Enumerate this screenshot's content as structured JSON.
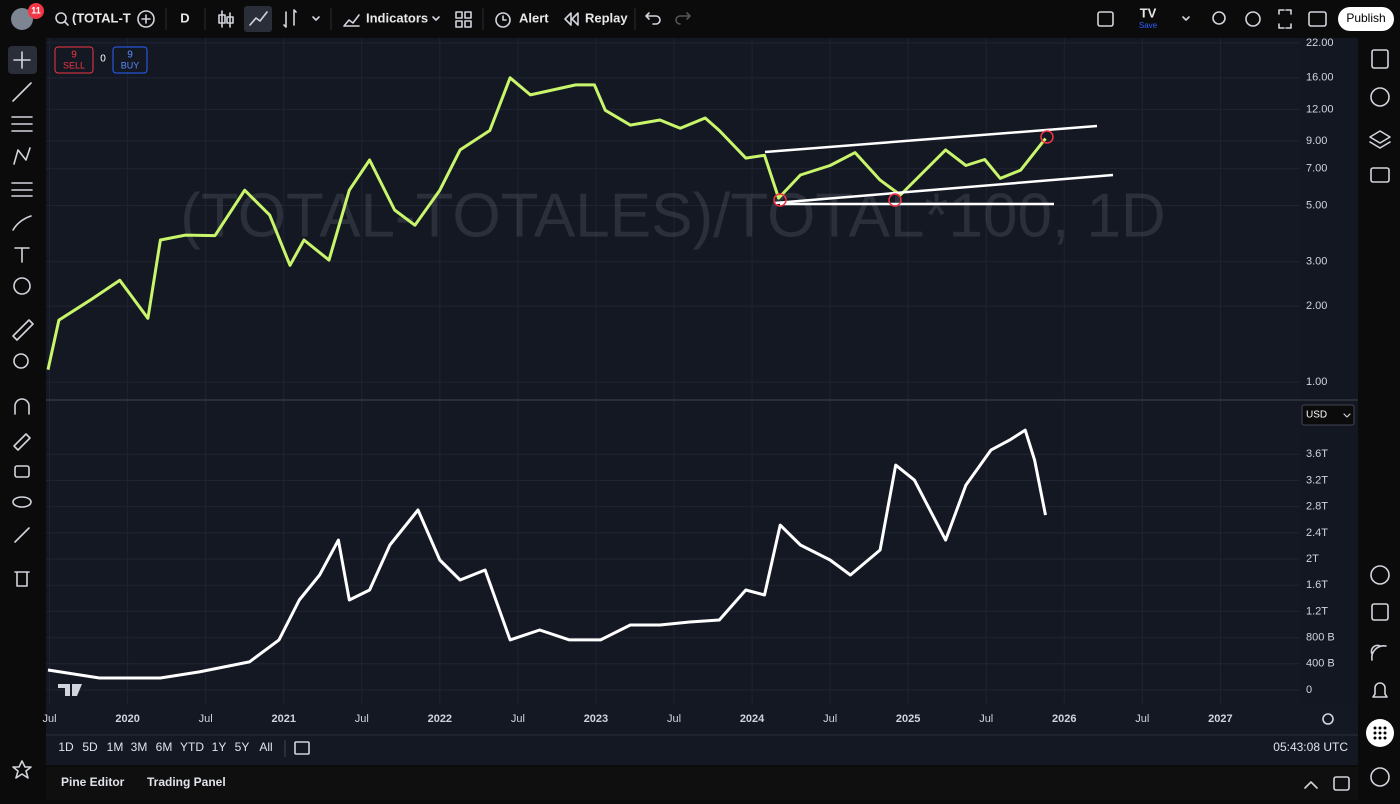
{
  "toolbar": {
    "notification_count": 11,
    "symbol": "(TOTAL-T",
    "interval": "D",
    "indicators": "Indicators",
    "alert": "Alert",
    "replay": "Replay",
    "layout_name": "TV",
    "save": "Save",
    "publish": "Publish"
  },
  "trade_widget": {
    "sell_price": 9,
    "sell": "SELL",
    "spread": 0,
    "buy_price": 9,
    "buy": "BUY"
  },
  "currency": "USD",
  "chart_data": [
    {
      "type": "line",
      "watermark": "(TOTAL-TOTALES)/TOTAL*100, 1D",
      "log_scale": true,
      "grid": true,
      "x": [
        2019.49,
        2019.56,
        2019.76,
        2019.95,
        2020.13,
        2020.21,
        2020.37,
        2020.56,
        2020.75,
        2020.91,
        2021.04,
        2021.13,
        2021.29,
        2021.42,
        2021.55,
        2021.71,
        2021.84,
        2022.0,
        2022.13,
        2022.32,
        2022.45,
        2022.58,
        2022.87,
        2022.99,
        2023.06,
        2023.22,
        2023.41,
        2023.54,
        2023.7,
        2023.79,
        2023.96,
        2024.08,
        2024.17,
        2024.31,
        2024.5,
        2024.66,
        2024.82,
        2024.95,
        2025.24,
        2025.37,
        2025.49,
        2025.59,
        2025.72,
        2025.88
      ],
      "series": [
        {
          "color": "#c8f56b",
          "values": [
            1.12,
            1.76,
            2.11,
            2.53,
            1.79,
            3.65,
            3.82,
            3.8,
            5.75,
            4.58,
            2.9,
            3.65,
            3.04,
            5.75,
            7.57,
            4.8,
            4.18,
            5.75,
            8.3,
            9.9,
            16,
            13.7,
            15,
            15,
            11.9,
            10.4,
            10.9,
            10.1,
            11.1,
            9.9,
            7.7,
            7.9,
            5.35,
            6.6,
            7.2,
            8.1,
            6.3,
            5.5,
            8.3,
            7.2,
            7.6,
            6.4,
            6.9,
            9.2
          ]
        }
      ],
      "xlim": [
        2019.49,
        2027.51
      ],
      "ylim": [
        0.85,
        23
      ],
      "yticks": [
        {
          "value": 1,
          "label": "1.00"
        },
        {
          "value": 2,
          "label": "2.00"
        },
        {
          "value": 3,
          "label": "3.00"
        },
        {
          "value": 5,
          "label": "5.00"
        },
        {
          "value": 7,
          "label": "7.00"
        },
        {
          "value": 9,
          "label": "9.00"
        },
        {
          "value": 12,
          "label": "12.00"
        },
        {
          "value": 16,
          "label": "16.00"
        },
        {
          "value": 22,
          "label": "22.00"
        }
      ]
    },
    {
      "type": "line",
      "grid": true,
      "x": [
        2019.49,
        2019.82,
        2020.21,
        2020.46,
        2020.78,
        2020.97,
        2021.1,
        2021.23,
        2021.35,
        2021.42,
        2021.55,
        2021.68,
        2021.86,
        2022.0,
        2022.13,
        2022.29,
        2022.45,
        2022.64,
        2022.83,
        2023.03,
        2023.22,
        2023.41,
        2023.6,
        2023.79,
        2023.96,
        2024.08,
        2024.18,
        2024.31,
        2024.5,
        2024.63,
        2024.82,
        2024.92,
        2025.04,
        2025.24,
        2025.37,
        2025.53,
        2025.65,
        2025.75,
        2025.81,
        2025.88
      ],
      "series": [
        {
          "color": "#ffffff",
          "values": [
            305000000000.0,
            183000000000.0,
            183000000000.0,
            275000000000.0,
            428000000000.0,
            764000000000.0,
            1374000000000.0,
            1756000000000.0,
            2290000000000.0,
            1374000000000.0,
            1527000000000.0,
            2214000000000.0,
            2749000000000.0,
            1985000000000.0,
            1680000000000.0,
            1832000000000.0,
            764000000000.0,
            916000000000.0,
            764000000000.0,
            764000000000.0,
            993000000000.0,
            993000000000.0,
            1038000000000.0,
            1069000000000.0,
            1527000000000.0,
            1450000000000.0,
            2519000000000.0,
            2214000000000.0,
            1985000000000.0,
            1756000000000.0,
            2138000000000.0,
            3435000000000.0,
            3206000000000.0,
            2290000000000.0,
            3130000000000.0,
            3664000000000.0,
            3817000000000.0,
            3970000000000.0,
            3512000000000.0,
            2672000000000.0
          ]
        }
      ],
      "xlim": [
        2019.49,
        2027.51
      ],
      "ylim": [
        -230000000000.0,
        4430000000000.0
      ],
      "yticks": [
        0,
        {
          "value": 400000000000.0,
          "label": "400 B"
        },
        {
          "value": 800000000000.0,
          "label": "800 B"
        },
        {
          "value": 1200000000000.0,
          "label": "1.2T"
        },
        {
          "value": 1600000000000.0,
          "label": "1.6T"
        },
        {
          "value": 2000000000000.0,
          "label": "2T"
        },
        {
          "value": 2400000000000.0,
          "label": "2.4T"
        },
        {
          "value": 2800000000000.0,
          "label": "2.8T"
        },
        {
          "value": 3200000000000.0,
          "label": "3.2T"
        },
        {
          "value": 3600000000000.0,
          "label": "3.6T"
        }
      ],
      "xticks": [
        {
          "value": 2019.5,
          "label": "Jul"
        },
        2020,
        {
          "value": 2020.5,
          "label": "Jul"
        },
        2021,
        {
          "value": 2021.5,
          "label": "Jul"
        },
        2022,
        {
          "value": 2022.5,
          "label": "Jul"
        },
        2023,
        {
          "value": 2023.5,
          "label": "Jul"
        },
        2024,
        {
          "value": 2024.5,
          "label": "Jul"
        },
        2025,
        {
          "value": 2025.5,
          "label": "Jul"
        },
        2026,
        {
          "value": 2026.5,
          "label": "Jul"
        },
        2027
      ]
    }
  ],
  "range_buttons": [
    "1D",
    "5D",
    "1M",
    "3M",
    "6M",
    "YTD",
    "1Y",
    "5Y",
    "All"
  ],
  "clock": "05:43:08 UTC",
  "bottom_tabs": [
    "Pine Editor",
    "Trading Panel"
  ]
}
